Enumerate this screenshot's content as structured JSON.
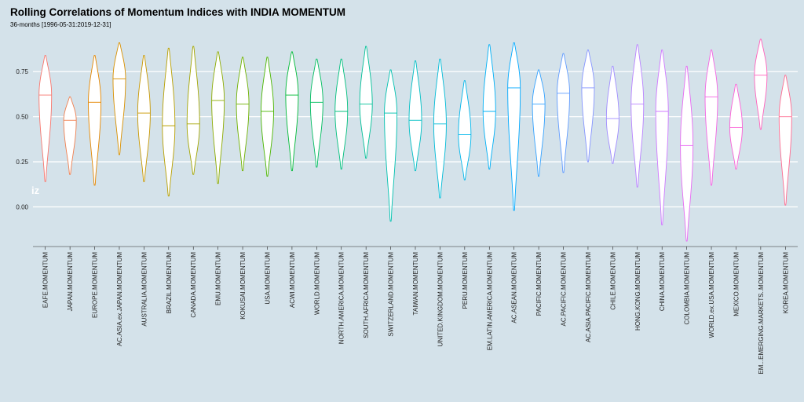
{
  "chart_data": {
    "type": "violin",
    "title": "Rolling Correlations of Momentum Indices with INDIA MOMENTUM",
    "subtitle": "36-months [1996-05-31:2019-12-31]",
    "watermark": "iz",
    "ylim": [
      -0.22,
      0.96
    ],
    "yticks": [
      0.0,
      0.25,
      0.5,
      0.75
    ],
    "ytick_labels": [
      "0.00",
      "0.25",
      "0.50",
      "0.75"
    ],
    "grid": true,
    "categories": [
      "EAFE.MOMENTUM",
      "JAPAN.MOMENTUM",
      "EUROPE.MOMENTUM",
      "AC.ASIA.ex.JAPAN.MOMENTUM",
      "AUSTRALIA.MOMENTUM",
      "BRAZIL.MOMENTUM",
      "CANADA.MOMENTUM",
      "EMU.MOMENTUM",
      "KOKUSAI.MOMENTUM",
      "USA.MOMENTUM",
      "ACWI.MOMENTUM",
      "WORLD.MOMENTUM",
      "NORTH.AMERICA.MOMENTUM",
      "SOUTH.AFRICA.MOMENTUM",
      "SWITZERLAND.MOMENTUM",
      "TAIWAN.MOMENTUM",
      "UNITED.KINGDOM.MOMENTUM",
      "PERU.MOMENTUM",
      "EM.LATIN.AMERICA.MOMENTUM",
      "AC.ASEAN.MOMENTUM",
      "PACIFIC.MOMENTUM",
      "AC.PACIFIC.MOMENTUM",
      "AC.ASIA.PACIFIC.MOMENTUM",
      "CHILE.MOMENTUM",
      "HONG.KONG.MOMENTUM",
      "CHINA.MOMENTUM",
      "COLOMBIA.MOMENTUM",
      "WORLD.ex.USA.MOMENTUM",
      "MEXICO.MOMENTUM",
      "EM...EMERGING.MARKETS..MOMENTUM",
      "KOREA.MOMENTUM"
    ],
    "colors": [
      "#f8766d",
      "#f07f4f",
      "#e58700",
      "#d89000",
      "#c99800",
      "#b79f00",
      "#a3a500",
      "#8cab00",
      "#6fb100",
      "#4bb600",
      "#00ba38",
      "#00bd5f",
      "#00bf7d",
      "#00c097",
      "#00c1af",
      "#00bfc4",
      "#00bbd7",
      "#00b6eb",
      "#00b0f6",
      "#00a9ff",
      "#35a2ff",
      "#619cff",
      "#8494ff",
      "#a08cff",
      "#b983ff",
      "#cf78ff",
      "#e76bf3",
      "#f465e3",
      "#fb61d7",
      "#ff62bc",
      "#ff6c91"
    ],
    "medians": [
      0.62,
      0.48,
      0.58,
      0.71,
      0.52,
      0.45,
      0.46,
      0.59,
      0.57,
      0.53,
      0.62,
      0.58,
      0.53,
      0.57,
      0.52,
      0.48,
      0.46,
      0.4,
      0.53,
      0.66,
      0.57,
      0.63,
      0.66,
      0.49,
      0.57,
      0.53,
      0.34,
      0.61,
      0.44,
      0.73,
      0.5
    ],
    "mins": [
      0.14,
      0.18,
      0.12,
      0.29,
      0.14,
      0.06,
      0.18,
      0.13,
      0.2,
      0.17,
      0.2,
      0.22,
      0.21,
      0.27,
      -0.08,
      0.2,
      0.05,
      0.15,
      0.21,
      -0.02,
      0.17,
      0.19,
      0.25,
      0.24,
      0.11,
      -0.1,
      -0.19,
      0.12,
      0.21,
      0.43,
      0.01
    ],
    "maxs": [
      0.84,
      0.61,
      0.84,
      0.91,
      0.84,
      0.88,
      0.89,
      0.86,
      0.83,
      0.83,
      0.86,
      0.82,
      0.82,
      0.89,
      0.76,
      0.81,
      0.82,
      0.7,
      0.9,
      0.91,
      0.76,
      0.85,
      0.87,
      0.78,
      0.9,
      0.87,
      0.78,
      0.87,
      0.68,
      0.93,
      0.73
    ]
  }
}
